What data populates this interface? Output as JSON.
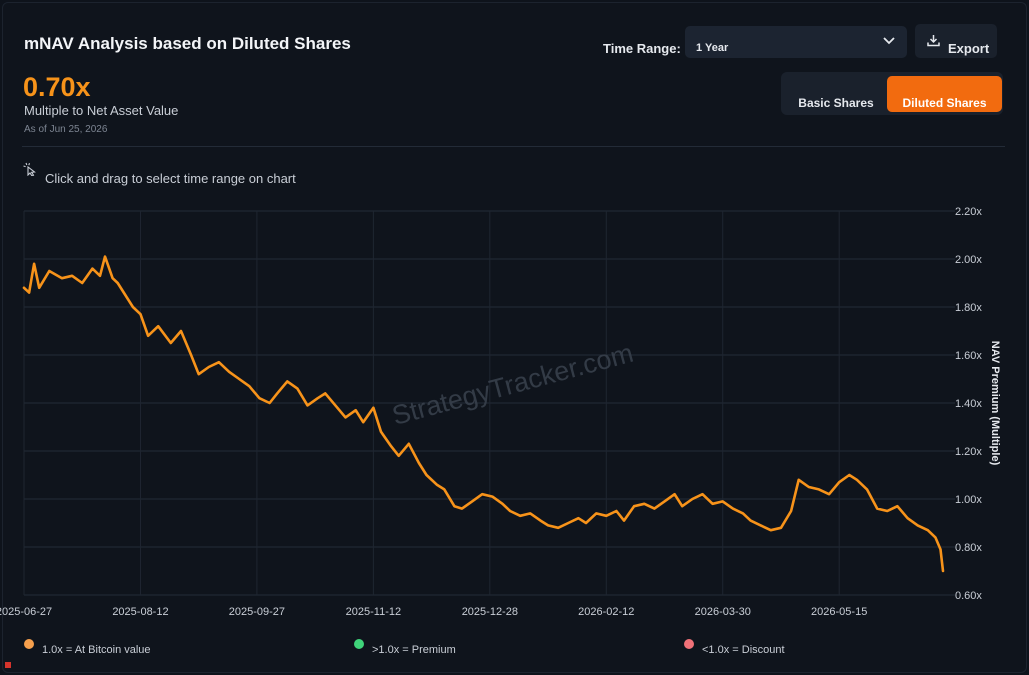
{
  "header": {
    "title": "mNAV Analysis based on Diluted Shares",
    "value": "0.70x",
    "value_label": "Multiple to Net Asset Value",
    "as_of": "As of Jun 25, 2026"
  },
  "controls": {
    "time_range_label": "Time Range:",
    "time_range_value": "1 Year",
    "export_label": "Export",
    "basic_shares_label": "Basic Shares",
    "diluted_shares_label": "Diluted Shares",
    "active_toggle": "Diluted Shares"
  },
  "hint": "Click and drag to select time range on chart",
  "watermark": "StrategyTracker.com",
  "legend": [
    {
      "label": "1.0x = At Bitcoin value",
      "color": "#f6a04d"
    },
    {
      "label": ">1.0x = Premium",
      "color": "#3fd47a"
    },
    {
      "label": "<1.0x = Discount",
      "color": "#f07178"
    }
  ],
  "icons": {
    "dropdown": "chevron-down-icon",
    "export": "download-icon",
    "hint": "cursor-click-icon"
  },
  "colors": {
    "accent": "#f7931a",
    "line": "#f7931a",
    "active_button": "#f26b0f"
  },
  "chart_data": {
    "type": "line",
    "title": "",
    "xlabel": "",
    "ylabel": "NAV Premium (Multiple)",
    "ylim": [
      0.6,
      2.2
    ],
    "y_ticks": [
      "2.20x",
      "2.00x",
      "1.80x",
      "1.60x",
      "1.40x",
      "1.20x",
      "1.00x",
      "0.80x",
      "0.60x"
    ],
    "y_tick_values": [
      2.2,
      2.0,
      1.8,
      1.6,
      1.4,
      1.2,
      1.0,
      0.8,
      0.6
    ],
    "x_ticks": [
      "2025-06-27",
      "2025-08-12",
      "2025-09-27",
      "2025-11-12",
      "2025-12-28",
      "2026-02-12",
      "2026-03-30",
      "2026-05-15"
    ],
    "grid": true,
    "series": [
      {
        "values": [
          1.88,
          1.86,
          1.98,
          1.88,
          1.95,
          1.92,
          1.93,
          1.9,
          1.96,
          1.93,
          2.01,
          1.92,
          1.9,
          1.85,
          1.8,
          1.77,
          1.68,
          1.72,
          1.65,
          1.7,
          1.6,
          1.52,
          1.55,
          1.57,
          1.53,
          1.5,
          1.47,
          1.42,
          1.4,
          1.44,
          1.49,
          1.46,
          1.39,
          1.42,
          1.44,
          1.39,
          1.34,
          1.37,
          1.32,
          1.38,
          1.28,
          1.22,
          1.18,
          1.23,
          1.15,
          1.1,
          1.06,
          1.04,
          0.97,
          0.96,
          0.99,
          1.02,
          1.01,
          0.98,
          0.95,
          0.93,
          0.94,
          0.91,
          0.89,
          0.88,
          0.9,
          0.92,
          0.9,
          0.94,
          0.93,
          0.95,
          0.91,
          0.97,
          0.98,
          0.96,
          0.99,
          1.02,
          0.97,
          1.0,
          1.02,
          0.98,
          0.99,
          0.96,
          0.94,
          0.91,
          0.89,
          0.87,
          0.88,
          0.95,
          1.08,
          1.05,
          1.04,
          1.02,
          1.07,
          1.1,
          1.08,
          1.04,
          0.96,
          0.95,
          0.97,
          0.92,
          0.89,
          0.87,
          0.84,
          0.79,
          0.7
        ],
        "dates": [
          "2025-06-27",
          "2025-06-29",
          "2025-07-01",
          "2025-07-03",
          "2025-07-07",
          "2025-07-12",
          "2025-07-16",
          "2025-07-20",
          "2025-07-24",
          "2025-07-27",
          "2025-07-29",
          "2025-08-01",
          "2025-08-03",
          "2025-08-06",
          "2025-08-09",
          "2025-08-12",
          "2025-08-15",
          "2025-08-19",
          "2025-08-24",
          "2025-08-28",
          "2025-09-01",
          "2025-09-04",
          "2025-09-08",
          "2025-09-12",
          "2025-09-16",
          "2025-09-20",
          "2025-09-24",
          "2025-09-28",
          "2025-10-02",
          "2025-10-05",
          "2025-10-09",
          "2025-10-13",
          "2025-10-17",
          "2025-10-21",
          "2025-10-24",
          "2025-10-28",
          "2025-11-01",
          "2025-11-05",
          "2025-11-08",
          "2025-11-12",
          "2025-11-15",
          "2025-11-19",
          "2025-11-22",
          "2025-11-26",
          "2025-11-30",
          "2025-12-03",
          "2025-12-07",
          "2025-12-10",
          "2025-12-14",
          "2025-12-17",
          "2025-12-21",
          "2025-12-25",
          "2025-12-29",
          "2026-01-02",
          "2026-01-05",
          "2026-01-09",
          "2026-01-13",
          "2026-01-17",
          "2026-01-20",
          "2026-01-24",
          "2026-01-28",
          "2026-02-01",
          "2026-02-04",
          "2026-02-08",
          "2026-02-12",
          "2026-02-16",
          "2026-02-19",
          "2026-02-23",
          "2026-02-27",
          "2026-03-03",
          "2026-03-07",
          "2026-03-11",
          "2026-03-14",
          "2026-03-18",
          "2026-03-22",
          "2026-03-26",
          "2026-03-30",
          "2026-04-03",
          "2026-04-07",
          "2026-04-10",
          "2026-04-14",
          "2026-04-18",
          "2026-04-22",
          "2026-04-26",
          "2026-04-29",
          "2026-05-03",
          "2026-05-07",
          "2026-05-11",
          "2026-05-15",
          "2026-05-19",
          "2026-05-22",
          "2026-05-26",
          "2026-05-30",
          "2026-06-03",
          "2026-06-07",
          "2026-06-11",
          "2026-06-15",
          "2026-06-19",
          "2026-06-22",
          "2026-06-24",
          "2026-06-25"
        ]
      }
    ]
  }
}
